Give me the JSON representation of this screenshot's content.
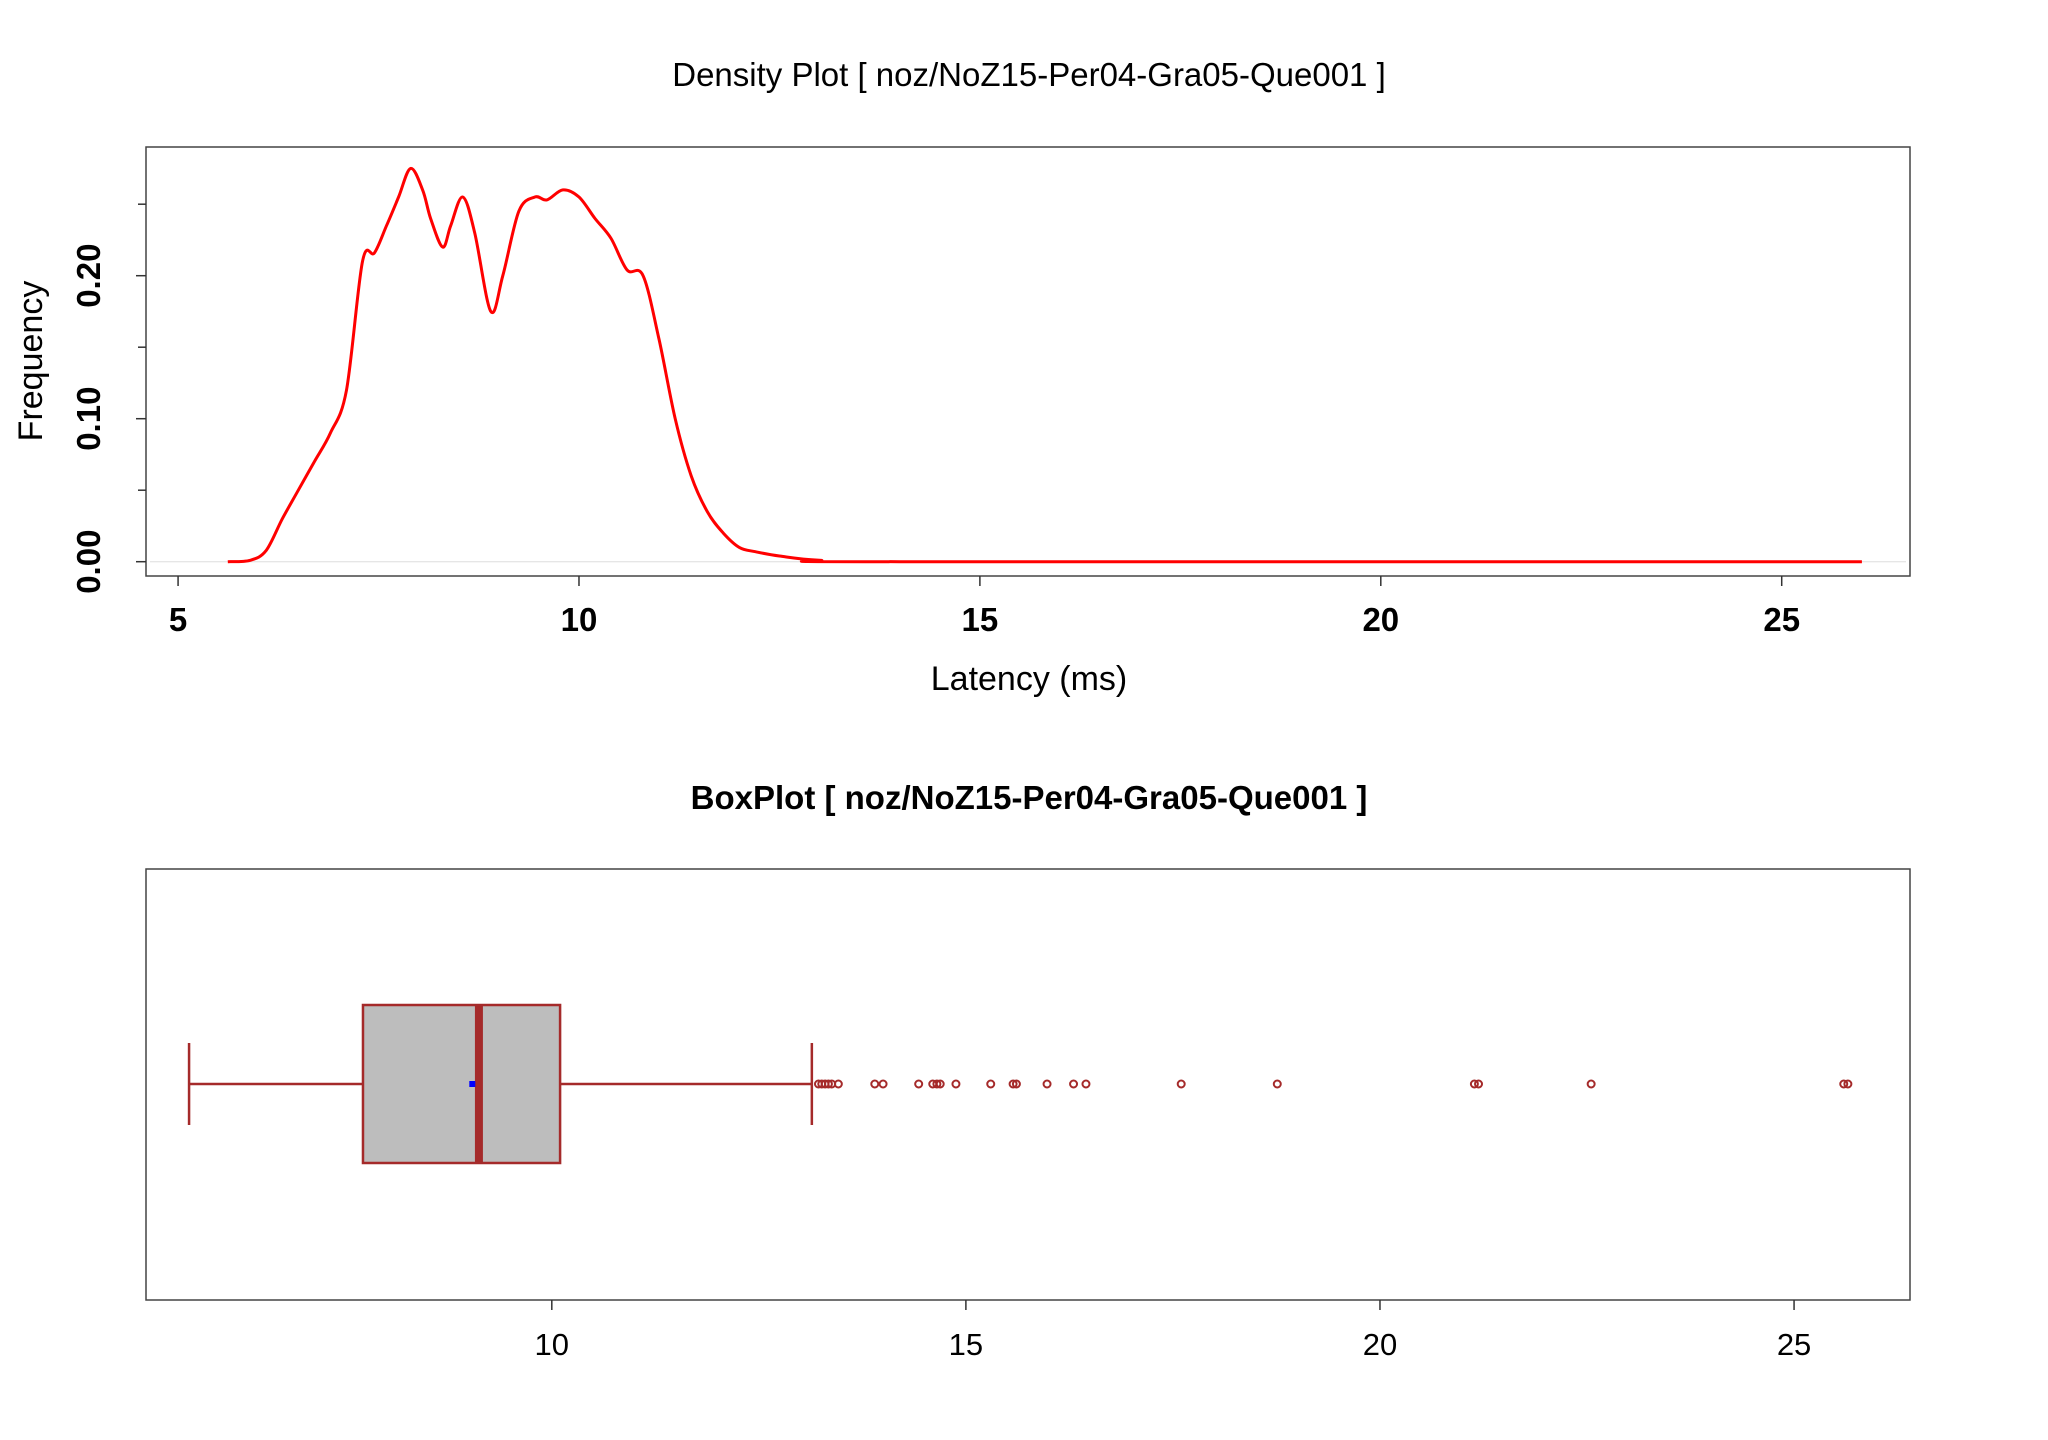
{
  "chart_data": [
    {
      "type": "line",
      "title": "Density Plot [ noz/NoZ15-Per04-Gra05-Que001 ]",
      "xlabel": "Latency (ms)",
      "ylabel": "Frequency",
      "xlim": [
        4.6,
        26.6
      ],
      "ylim": [
        -0.01,
        0.29
      ],
      "xticks": [
        5,
        10,
        15,
        20,
        25
      ],
      "yticks": [
        0.0,
        0.1,
        0.2
      ],
      "ytick_labels": [
        "0.00",
        "0.10",
        "0.20"
      ],
      "y_minor_ticks": [
        0.05,
        0.15,
        0.25
      ],
      "color": "#ff0000",
      "series": [
        {
          "x": [
            5.62,
            5.9,
            6.1,
            6.3,
            6.5,
            6.7,
            6.9,
            7.1,
            7.3,
            7.45,
            7.6,
            7.75,
            7.9,
            8.05,
            8.15,
            8.3,
            8.4,
            8.55,
            8.7,
            8.9,
            9.05,
            9.25,
            9.45,
            9.6,
            9.8,
            10.0,
            10.2,
            10.4,
            10.6,
            10.8,
            11.0,
            11.2,
            11.4,
            11.6,
            11.8,
            12.0,
            12.2,
            12.5,
            13.0,
            14.0,
            26.0
          ],
          "y": [
            0.0,
            0.001,
            0.008,
            0.03,
            0.05,
            0.07,
            0.09,
            0.12,
            0.21,
            0.216,
            0.235,
            0.255,
            0.275,
            0.26,
            0.24,
            0.22,
            0.235,
            0.255,
            0.23,
            0.175,
            0.2,
            0.245,
            0.255,
            0.253,
            0.26,
            0.255,
            0.24,
            0.226,
            0.204,
            0.2,
            0.155,
            0.1,
            0.06,
            0.035,
            0.02,
            0.01,
            0.007,
            0.004,
            0.001,
            0.0,
            0.0
          ]
        }
      ]
    },
    {
      "type": "box",
      "title": "BoxPlot [ noz/NoZ15-Per04-Gra05-Que001 ]",
      "xlim": [
        5.1,
        26.4
      ],
      "xticks": [
        10,
        15,
        20,
        25
      ],
      "whisker_low": 5.62,
      "q1": 7.72,
      "median": 9.12,
      "q3": 10.1,
      "whisker_high": 13.14,
      "mean": 9.04,
      "box_fill": "#bdbdbd",
      "line_color": "#a52a2a",
      "mean_color": "#0000ff",
      "outliers": [
        13.22,
        13.26,
        13.3,
        13.34,
        13.38,
        13.46,
        13.9,
        14.0,
        14.43,
        14.6,
        14.65,
        14.69,
        14.88,
        15.3,
        15.57,
        15.61,
        15.98,
        16.3,
        16.45,
        17.6,
        18.76,
        21.14,
        21.19,
        22.55,
        25.6,
        25.65
      ]
    }
  ]
}
